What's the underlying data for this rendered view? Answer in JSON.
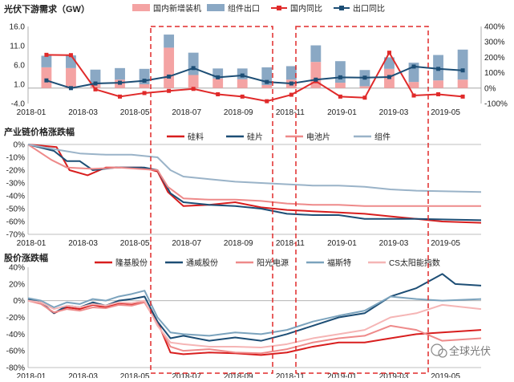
{
  "chart_data": [
    {
      "type": "bar",
      "title": "光伏下游需求（GW）",
      "x_tick_labels": [
        "2018-01",
        "2018-03",
        "2018-05",
        "2018-07",
        "2018-09",
        "2018-11",
        "2019-01",
        "2019-03",
        "2019-05"
      ],
      "categories": [
        "2018-01",
        "2018-02",
        "2018-03",
        "2018-04",
        "2018-05",
        "2018-06",
        "2018-07",
        "2018-08",
        "2018-09",
        "2018-10",
        "2018-11",
        "2018-12",
        "2019-01",
        "2019-02",
        "2019-03",
        "2019-04",
        "2019-05",
        "2019-06"
      ],
      "y_left": {
        "ticks": [
          "16.0",
          "11.0",
          "6.0",
          "1.0",
          "-4.0"
        ],
        "ylim": [
          -4,
          16
        ]
      },
      "y_right": {
        "ticks": [
          "400%",
          "300%",
          "200%",
          "100%",
          "0%",
          "-100%"
        ],
        "ylim": [
          -100,
          400
        ]
      },
      "series": [
        {
          "name": "国内新增装机",
          "kind": "bar",
          "axis": "left",
          "color": "#f4a3a3",
          "values": [
            5.4,
            5.2,
            1.0,
            2.2,
            1.0,
            10.5,
            3.4,
            2.5,
            2.3,
            0.8,
            2.2,
            6.8,
            1.4,
            0.5,
            5.0,
            1.6,
            2.0,
            2.2
          ]
        },
        {
          "name": "组件出口",
          "kind": "bar",
          "axis": "left",
          "color": "#8aa8c4",
          "values": [
            3.0,
            3.3,
            3.8,
            3.0,
            4.0,
            3.4,
            5.8,
            2.6,
            2.8,
            4.6,
            3.5,
            4.3,
            5.6,
            4.2,
            3.0,
            5.0,
            6.6,
            7.8
          ]
        },
        {
          "name": "国内同比",
          "kind": "line",
          "axis": "right",
          "color": "#e02a2a",
          "values": [
            216,
            214,
            -8,
            -55,
            -32,
            -18,
            -5,
            -40,
            -55,
            -85,
            -43,
            45,
            -55,
            -62,
            230,
            -48,
            -40,
            -55
          ]
        },
        {
          "name": "出口同比",
          "kind": "line",
          "axis": "right",
          "color": "#1d4e75",
          "values": [
            50,
            0,
            30,
            35,
            48,
            75,
            130,
            70,
            82,
            40,
            30,
            55,
            70,
            68,
            72,
            140,
            125,
            115
          ]
        }
      ]
    },
    {
      "type": "line",
      "title": "产业链价格涨跌幅",
      "x_tick_labels": [
        "2018-01",
        "2018-03",
        "2018-05",
        "2018-07",
        "2018-09",
        "2018-11",
        "2019-01",
        "2019-03",
        "2019-05"
      ],
      "y_ticks": [
        "0%",
        "-10%",
        "-20%",
        "-30%",
        "-40%",
        "-50%",
        "-60%",
        "-70%"
      ],
      "ylim": [
        -70,
        0
      ],
      "x_range_months": [
        0,
        17.5
      ],
      "series": [
        {
          "name": "硅料",
          "color": "#d81e1e",
          "points": [
            [
              0,
              0
            ],
            [
              1.1,
              -2
            ],
            [
              1.6,
              -20
            ],
            [
              2.3,
              -24
            ],
            [
              3,
              -18
            ],
            [
              4.4,
              -18
            ],
            [
              5,
              -21
            ],
            [
              5.4,
              -37
            ],
            [
              6,
              -48
            ],
            [
              7,
              -47
            ],
            [
              8,
              -45
            ],
            [
              9,
              -49
            ],
            [
              10,
              -51
            ],
            [
              11,
              -52
            ],
            [
              12,
              -53
            ],
            [
              13,
              -54
            ],
            [
              14,
              -56
            ],
            [
              15,
              -58
            ],
            [
              16,
              -60
            ],
            [
              17.5,
              -61
            ]
          ]
        },
        {
          "name": "硅片",
          "color": "#1d4e75",
          "points": [
            [
              0,
              0
            ],
            [
              1,
              -5
            ],
            [
              1.5,
              -13
            ],
            [
              2,
              -13
            ],
            [
              2.5,
              -20
            ],
            [
              3.4,
              -18
            ],
            [
              4.5,
              -18
            ],
            [
              5,
              -20
            ],
            [
              5.5,
              -38
            ],
            [
              6,
              -45
            ],
            [
              7,
              -47
            ],
            [
              8,
              -48
            ],
            [
              9,
              -50
            ],
            [
              10,
              -54
            ],
            [
              11,
              -55
            ],
            [
              12,
              -55
            ],
            [
              13,
              -58
            ],
            [
              14,
              -58
            ],
            [
              15,
              -58
            ],
            [
              17.5,
              -59
            ]
          ]
        },
        {
          "name": "电池片",
          "color": "#ee8a8a",
          "points": [
            [
              0,
              0
            ],
            [
              0.9,
              -12
            ],
            [
              1.5,
              -18
            ],
            [
              2.5,
              -19
            ],
            [
              3.5,
              -18
            ],
            [
              5,
              -20
            ],
            [
              5.4,
              -33
            ],
            [
              6,
              -42
            ],
            [
              7,
              -43
            ],
            [
              8,
              -43
            ],
            [
              9,
              -44
            ],
            [
              10,
              -46
            ],
            [
              11,
              -47
            ],
            [
              12,
              -47
            ],
            [
              13,
              -48
            ],
            [
              14,
              -48
            ],
            [
              15,
              -48
            ],
            [
              17.5,
              -48
            ]
          ]
        },
        {
          "name": "组件",
          "color": "#9ab3c8",
          "points": [
            [
              0,
              0
            ],
            [
              1.1,
              -4
            ],
            [
              2,
              -7
            ],
            [
              3,
              -8
            ],
            [
              4,
              -8
            ],
            [
              5,
              -10
            ],
            [
              5.5,
              -20
            ],
            [
              6,
              -25
            ],
            [
              7,
              -27
            ],
            [
              8,
              -29
            ],
            [
              9,
              -30
            ],
            [
              10,
              -31
            ],
            [
              11,
              -32
            ],
            [
              12,
              -32
            ],
            [
              13,
              -33
            ],
            [
              14,
              -35
            ],
            [
              15,
              -36
            ],
            [
              17.5,
              -37
            ]
          ]
        }
      ]
    },
    {
      "type": "line",
      "title": "股价涨跌幅",
      "x_tick_labels": [
        "2018-01",
        "2018-03",
        "2018-05",
        "2018-07",
        "2018-09",
        "2018-11",
        "2019-01",
        "2019-03",
        "2019-05"
      ],
      "y_ticks": [
        "40%",
        "20%",
        "0%",
        "-20%",
        "-40%",
        "-60%",
        "-80%"
      ],
      "ylim": [
        -80,
        40
      ],
      "x_range_months": [
        0,
        17.5
      ],
      "series": [
        {
          "name": "隆基股份",
          "color": "#d81e1e",
          "points": [
            [
              0,
              0
            ],
            [
              0.5,
              -3
            ],
            [
              1,
              -15
            ],
            [
              1.5,
              -8
            ],
            [
              2,
              -10
            ],
            [
              2.5,
              -5
            ],
            [
              3,
              -8
            ],
            [
              3.5,
              -3
            ],
            [
              4,
              -4
            ],
            [
              4.5,
              -2
            ],
            [
              5,
              -25
            ],
            [
              5.5,
              -62
            ],
            [
              6,
              -64
            ],
            [
              7,
              -62
            ],
            [
              8,
              -63
            ],
            [
              9,
              -65
            ],
            [
              10,
              -62
            ],
            [
              11,
              -55
            ],
            [
              12,
              -50
            ],
            [
              13,
              -50
            ],
            [
              14,
              -45
            ],
            [
              15,
              -40
            ],
            [
              16,
              -38
            ],
            [
              17.5,
              -35
            ]
          ]
        },
        {
          "name": "通威股份",
          "color": "#1d4e75",
          "points": [
            [
              0,
              2
            ],
            [
              0.5,
              -2
            ],
            [
              1,
              -15
            ],
            [
              1.5,
              -6
            ],
            [
              2,
              -8
            ],
            [
              2.5,
              -2
            ],
            [
              3,
              -6
            ],
            [
              3.5,
              0
            ],
            [
              4,
              2
            ],
            [
              4.5,
              5
            ],
            [
              5,
              -25
            ],
            [
              5.5,
              -45
            ],
            [
              6,
              -42
            ],
            [
              7,
              -48
            ],
            [
              8,
              -44
            ],
            [
              9,
              -48
            ],
            [
              10,
              -40
            ],
            [
              11,
              -30
            ],
            [
              12,
              -20
            ],
            [
              13,
              -15
            ],
            [
              14,
              5
            ],
            [
              15,
              15
            ],
            [
              16,
              32
            ],
            [
              16.5,
              20
            ],
            [
              17.5,
              18
            ]
          ]
        },
        {
          "name": "阳光电源",
          "color": "#ee8a8a",
          "points": [
            [
              0,
              0
            ],
            [
              0.5,
              -4
            ],
            [
              1,
              -14
            ],
            [
              1.5,
              -10
            ],
            [
              2,
              -12
            ],
            [
              2.5,
              -8
            ],
            [
              3,
              -9
            ],
            [
              3.5,
              -5
            ],
            [
              4,
              -6
            ],
            [
              4.5,
              -2
            ],
            [
              5,
              -28
            ],
            [
              5.5,
              -55
            ],
            [
              6,
              -60
            ],
            [
              7,
              -58
            ],
            [
              8,
              -62
            ],
            [
              9,
              -63
            ],
            [
              10,
              -58
            ],
            [
              11,
              -50
            ],
            [
              12,
              -45
            ],
            [
              13,
              -42
            ],
            [
              14,
              -30
            ],
            [
              15,
              -35
            ],
            [
              16,
              -48
            ],
            [
              17.5,
              -45
            ]
          ]
        },
        {
          "name": "福斯特",
          "color": "#7ba3bd",
          "points": [
            [
              0,
              3
            ],
            [
              0.5,
              0
            ],
            [
              1,
              -8
            ],
            [
              1.5,
              -2
            ],
            [
              2,
              -4
            ],
            [
              2.5,
              2
            ],
            [
              3,
              0
            ],
            [
              3.5,
              5
            ],
            [
              4,
              8
            ],
            [
              4.5,
              12
            ],
            [
              5,
              -20
            ],
            [
              5.5,
              -38
            ],
            [
              6,
              -40
            ],
            [
              7,
              -42
            ],
            [
              8,
              -38
            ],
            [
              9,
              -40
            ],
            [
              10,
              -35
            ],
            [
              11,
              -25
            ],
            [
              12,
              -18
            ],
            [
              13,
              -12
            ],
            [
              14,
              5
            ],
            [
              15,
              2
            ],
            [
              16,
              0
            ],
            [
              17.5,
              2
            ]
          ]
        },
        {
          "name": "CS太阳能指数",
          "color": "#f5b5b5",
          "points": [
            [
              0,
              0
            ],
            [
              0.5,
              -2
            ],
            [
              1,
              -10
            ],
            [
              1.5,
              -6
            ],
            [
              2,
              -8
            ],
            [
              2.5,
              -4
            ],
            [
              3,
              -6
            ],
            [
              3.5,
              -2
            ],
            [
              4,
              -3
            ],
            [
              4.5,
              0
            ],
            [
              5,
              -30
            ],
            [
              5.5,
              -50
            ],
            [
              6,
              -52
            ],
            [
              7,
              -55
            ],
            [
              8,
              -55
            ],
            [
              9,
              -56
            ],
            [
              10,
              -52
            ],
            [
              11,
              -45
            ],
            [
              12,
              -40
            ],
            [
              13,
              -35
            ],
            [
              14,
              -20
            ],
            [
              15,
              -15
            ],
            [
              16,
              -5
            ],
            [
              17.5,
              -10
            ]
          ]
        }
      ]
    }
  ],
  "highlight_periods": [
    "2018-06 – 2018-11",
    "2018-12 – 2019-05"
  ],
  "highlight_color": "#e02a2a",
  "watermark": "全球光伏"
}
